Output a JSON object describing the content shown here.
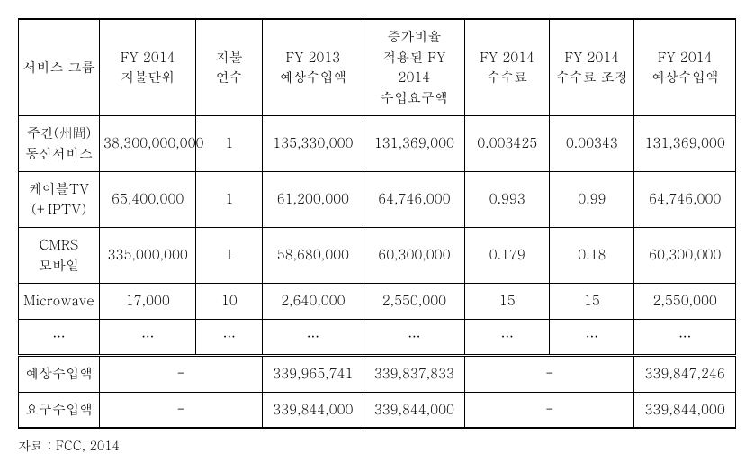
{
  "table": {
    "columns": [
      "서비스 그룹",
      "FY 2014 지불단위",
      "지불 연수",
      "FY 2013 예상수입액",
      "증가비율 적용된 FY 2014 수입요구액",
      "FY 2014 수수료",
      "FY 2014 수수료 조정",
      "FY 2014 예상수입액"
    ],
    "rows": [
      {
        "c0": "주간(州間) 통신서비스",
        "c1": "38,300,000,000",
        "c2": "1",
        "c3": "135,330,000",
        "c4": "131,369,000",
        "c5": "0.003425",
        "c6": "0.00343",
        "c7": "131,369,000"
      },
      {
        "c0": "케이블TV (+IPTV)",
        "c1": "65,400,000",
        "c2": "1",
        "c3": "61,200,000",
        "c4": "64,746,000",
        "c5": "0.993",
        "c6": "0.99",
        "c7": "64,746,000"
      },
      {
        "c0": "CMRS 모바일",
        "c1": "335,000,000",
        "c2": "1",
        "c3": "58,680,000",
        "c4": "60,300,000",
        "c5": "0.179",
        "c6": "0.18",
        "c7": "60,300,000"
      },
      {
        "c0": "Microwave",
        "c1": "17,000",
        "c2": "10",
        "c3": "2,640,000",
        "c4": "2,550,000",
        "c5": "15",
        "c6": "15",
        "c7": "2,550,000"
      },
      {
        "c0": "…",
        "c1": "…",
        "c2": "…",
        "c3": "…",
        "c4": "…",
        "c5": "…",
        "c6": "…",
        "c7": "…"
      }
    ],
    "summary": [
      {
        "label": "예상수입액",
        "dash1": "-",
        "v3": "339,965,741",
        "v4": "339,837,833",
        "dash2": "-",
        "v7": "339,847,246"
      },
      {
        "label": "요구수입액",
        "dash1": "-",
        "v3": "339,844,000",
        "v4": "339,844,000",
        "dash2": "-",
        "v7": "339,844,000"
      }
    ]
  },
  "source": "자료 : FCC, 2014"
}
